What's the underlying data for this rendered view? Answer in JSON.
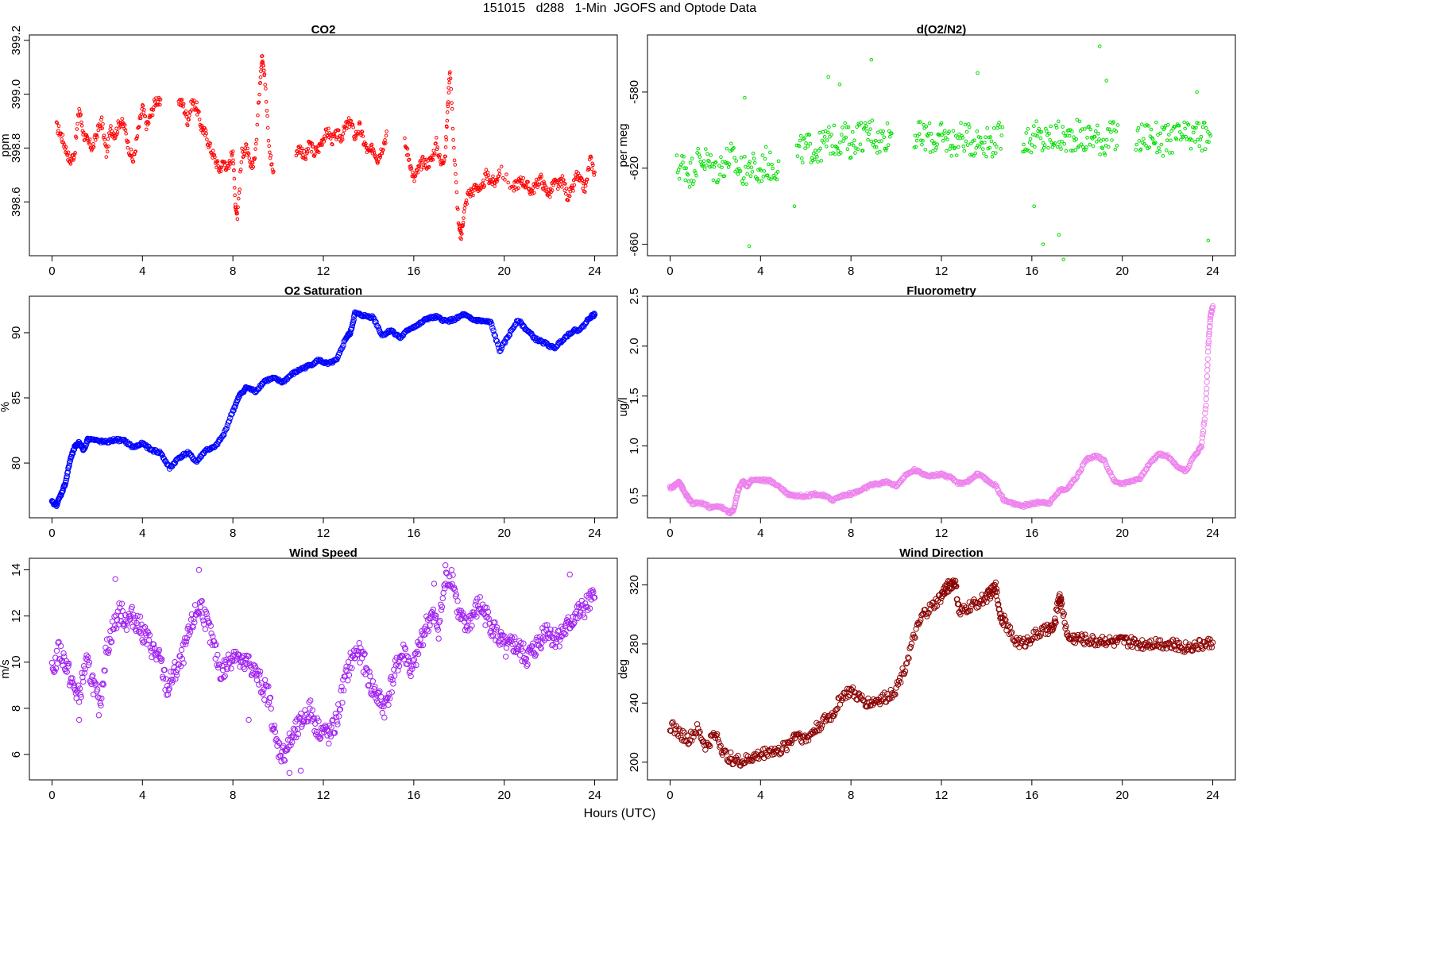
{
  "page_title": "151015   d288   1-Min  JGOFS and Optode Data",
  "x_axis_label": "Hours (UTC)",
  "colors": {
    "co2": "#ff0000",
    "o2n2": "#00dd00",
    "o2sat": "#0000ff",
    "fluor": "#ee82ee",
    "wind_speed": "#a020f0",
    "wind_dir": "#8b0000"
  },
  "chart_data": [
    {
      "id": "co2",
      "type": "scatter",
      "title": "CO2",
      "ylabel": "ppm",
      "xlim": [
        -1,
        25
      ],
      "ylim": [
        398.4,
        399.22
      ],
      "xticks": [
        0,
        4,
        8,
        12,
        16,
        20,
        24
      ],
      "xtick_labels": [
        "0",
        "4",
        "8",
        "12",
        "16",
        "20",
        "24"
      ],
      "yticks": [
        398.6,
        398.8,
        399.0,
        399.2
      ],
      "ytick_labels": [
        "398.6",
        "398.8",
        "399.0",
        "399.2"
      ],
      "grid": false,
      "marker_size": "small",
      "x": [
        0.2,
        0.4,
        0.6,
        0.8,
        1.0,
        1.2,
        1.4,
        1.6,
        1.8,
        2.0,
        2.2,
        2.4,
        2.6,
        2.8,
        3.0,
        3.2,
        3.4,
        3.6,
        3.8,
        4.0,
        4.2,
        4.4,
        4.6,
        4.8,
        5.6,
        5.8,
        6.0,
        6.2,
        6.4,
        6.6,
        6.8,
        7.0,
        7.2,
        7.4,
        7.6,
        7.8,
        8.0,
        8.1,
        8.2,
        8.4,
        8.6,
        8.8,
        9.0,
        9.2,
        9.3,
        9.4,
        9.6,
        9.8,
        10.8,
        11.0,
        11.2,
        11.4,
        11.6,
        11.8,
        12.0,
        12.2,
        12.4,
        12.6,
        12.8,
        13.0,
        13.2,
        13.4,
        13.6,
        13.8,
        14.0,
        14.2,
        14.4,
        14.6,
        14.8,
        15.6,
        15.8,
        16.0,
        16.2,
        16.4,
        16.6,
        16.8,
        17.0,
        17.2,
        17.4,
        17.5,
        17.6,
        17.8,
        18.0,
        18.1,
        18.2,
        18.4,
        18.6,
        18.8,
        19.0,
        19.2,
        19.4,
        19.6,
        19.8,
        20.4,
        20.6,
        20.8,
        21.0,
        21.2,
        21.4,
        21.6,
        21.8,
        22.0,
        22.2,
        22.4,
        22.6,
        22.8,
        23.0,
        23.2,
        23.4,
        23.6,
        23.8,
        24.0
      ],
      "y": [
        398.88,
        398.85,
        398.8,
        398.75,
        398.78,
        398.95,
        398.85,
        398.82,
        398.8,
        398.86,
        398.9,
        398.78,
        398.87,
        398.85,
        398.9,
        398.88,
        398.8,
        398.75,
        398.86,
        398.95,
        398.88,
        398.93,
        398.98,
        398.96,
        398.98,
        398.96,
        398.9,
        398.97,
        398.95,
        398.88,
        398.85,
        398.8,
        398.76,
        398.72,
        398.75,
        398.72,
        398.8,
        398.6,
        398.55,
        398.78,
        398.8,
        398.72,
        398.78,
        399.05,
        399.15,
        399.08,
        398.8,
        398.7,
        398.79,
        398.8,
        398.76,
        398.82,
        398.78,
        398.8,
        398.84,
        398.86,
        398.83,
        398.85,
        398.84,
        398.88,
        398.9,
        398.84,
        398.88,
        398.82,
        398.78,
        398.8,
        398.76,
        398.8,
        398.85,
        398.82,
        398.76,
        398.68,
        398.72,
        398.75,
        398.74,
        398.76,
        398.82,
        398.74,
        398.78,
        398.95,
        399.1,
        398.76,
        398.5,
        398.47,
        398.55,
        398.63,
        398.64,
        398.66,
        398.64,
        398.7,
        398.68,
        398.67,
        398.72,
        398.65,
        398.67,
        398.68,
        398.66,
        398.64,
        398.66,
        398.69,
        398.65,
        398.63,
        398.67,
        398.66,
        398.68,
        398.62,
        398.64,
        398.7,
        398.67,
        398.65,
        398.76,
        398.71
      ]
    },
    {
      "id": "o2n2",
      "type": "scatter",
      "title": "d(O2/N2)",
      "ylabel": "per meg",
      "xlim": [
        -1,
        25
      ],
      "ylim": [
        -666,
        -550
      ],
      "xticks": [
        0,
        4,
        8,
        12,
        16,
        20,
        24
      ],
      "xtick_labels": [
        "0",
        "4",
        "8",
        "12",
        "16",
        "20",
        "24"
      ],
      "yticks": [
        -580,
        -620,
        -660
      ],
      "ytick_labels": [
        "-580",
        "-620",
        "-660"
      ],
      "grid": false,
      "marker_size": "small",
      "x": [
        0.3,
        0.6,
        0.9,
        1.2,
        1.5,
        1.8,
        2.1,
        2.4,
        2.7,
        3.0,
        3.3,
        3.6,
        3.9,
        4.2,
        4.5,
        4.8,
        5.6,
        5.9,
        6.2,
        6.5,
        6.8,
        7.1,
        7.4,
        7.7,
        8.0,
        8.3,
        8.6,
        8.9,
        9.2,
        9.5,
        9.8,
        10.8,
        11.1,
        11.4,
        11.7,
        12.0,
        12.3,
        12.6,
        12.9,
        13.2,
        13.5,
        13.8,
        14.1,
        14.4,
        14.7,
        15.6,
        15.9,
        16.2,
        16.5,
        16.8,
        17.1,
        17.4,
        17.7,
        18.0,
        18.3,
        18.6,
        18.9,
        19.2,
        19.5,
        19.8,
        20.6,
        20.9,
        21.2,
        21.5,
        21.8,
        22.1,
        22.4,
        22.7,
        23.0,
        23.3,
        23.6,
        23.9
      ],
      "y": [
        -620,
        -618,
        -623,
        -616,
        -615,
        -619,
        -621,
        -617,
        -614,
        -620,
        -622,
        -618,
        -624,
        -616,
        -620,
        -618,
        -612,
        -610,
        -609,
        -611,
        -607,
        -605,
        -606,
        -603,
        -608,
        -602,
        -604,
        -600,
        -606,
        -603,
        -601,
        -602,
        -604,
        -603,
        -606,
        -604,
        -605,
        -607,
        -603,
        -605,
        -606,
        -604,
        -607,
        -605,
        -603,
        -604,
        -605,
        -603,
        -606,
        -604,
        -603,
        -605,
        -604,
        -602,
        -605,
        -603,
        -604,
        -606,
        -603,
        -604,
        -605,
        -604,
        -603,
        -604,
        -606,
        -605,
        -604,
        -603,
        -605,
        -602,
        -604,
        -603
      ],
      "scatter_x": [
        3.3,
        7.0,
        8.9,
        13.6,
        16.5,
        17.4,
        19.0,
        19.3,
        23.3,
        23.8,
        16.1,
        17.2,
        5.5,
        7.5,
        3.5
      ],
      "scatter_y": [
        -583,
        -572,
        -563,
        -570,
        -660,
        -668,
        -556,
        -574,
        -580,
        -658,
        -640,
        -655,
        -640,
        -576,
        -661
      ]
    },
    {
      "id": "o2sat",
      "type": "scatter",
      "title": "O2 Saturation",
      "ylabel": "%",
      "xlim": [
        -1,
        25
      ],
      "ylim": [
        75.8,
        92.8
      ],
      "xticks": [
        0,
        4,
        8,
        12,
        16,
        20,
        24
      ],
      "xtick_labels": [
        "0",
        "4",
        "8",
        "12",
        "16",
        "20",
        "24"
      ],
      "yticks": [
        80,
        85,
        90
      ],
      "ytick_labels": [
        "80",
        "85",
        "90"
      ],
      "grid": false,
      "marker_size": "large",
      "x": [
        0.0,
        0.2,
        0.4,
        0.6,
        0.8,
        1.0,
        1.2,
        1.4,
        1.6,
        2.0,
        2.4,
        2.8,
        3.2,
        3.6,
        4.0,
        4.4,
        4.8,
        5.2,
        5.6,
        6.0,
        6.4,
        6.8,
        7.2,
        7.6,
        8.0,
        8.3,
        8.6,
        9.0,
        9.4,
        9.8,
        10.2,
        10.6,
        11.0,
        11.4,
        11.8,
        12.2,
        12.6,
        13.0,
        13.2,
        13.4,
        13.8,
        14.2,
        14.6,
        15.0,
        15.4,
        15.8,
        16.2,
        16.6,
        17.0,
        17.4,
        17.8,
        18.2,
        18.6,
        19.0,
        19.4,
        19.8,
        20.2,
        20.6,
        21.0,
        21.4,
        21.8,
        22.2,
        22.6,
        23.0,
        23.4,
        23.8,
        24.0
      ],
      "y": [
        77.0,
        76.8,
        77.6,
        78.5,
        80.2,
        81.2,
        81.6,
        81.0,
        81.9,
        81.7,
        81.6,
        81.8,
        81.7,
        81.2,
        81.5,
        81.0,
        80.8,
        79.6,
        80.4,
        80.8,
        80.1,
        81.0,
        81.2,
        82.2,
        84.0,
        85.2,
        85.8,
        85.5,
        86.3,
        86.5,
        86.2,
        86.8,
        87.2,
        87.5,
        87.9,
        87.6,
        87.9,
        89.6,
        90.0,
        91.5,
        91.3,
        91.2,
        89.8,
        90.2,
        89.6,
        90.3,
        90.6,
        91.1,
        91.2,
        90.9,
        91.0,
        91.4,
        91.0,
        90.9,
        90.8,
        88.6,
        89.8,
        91.0,
        90.2,
        89.5,
        89.2,
        88.8,
        89.5,
        90.1,
        90.3,
        91.2,
        91.4
      ]
    },
    {
      "id": "fluor",
      "type": "scatter",
      "title": "Fluorometry",
      "ylabel": "ug/l",
      "xlim": [
        -1,
        25
      ],
      "ylim": [
        0.28,
        2.5
      ],
      "xticks": [
        0,
        4,
        8,
        12,
        16,
        20,
        24
      ],
      "xtick_labels": [
        "0",
        "4",
        "8",
        "12",
        "16",
        "20",
        "24"
      ],
      "yticks": [
        0.5,
        1.0,
        1.5,
        2.0,
        2.5
      ],
      "ytick_labels": [
        "0.5",
        "1.0",
        "1.5",
        "2.0",
        "2.5"
      ],
      "grid": false,
      "marker_size": "large",
      "x": [
        0.0,
        0.2,
        0.4,
        0.6,
        0.8,
        1.0,
        1.4,
        1.8,
        2.2,
        2.6,
        2.8,
        3.0,
        3.2,
        3.4,
        3.6,
        4.0,
        4.4,
        4.8,
        5.2,
        5.6,
        6.0,
        6.4,
        6.8,
        7.2,
        7.6,
        8.0,
        8.4,
        8.8,
        9.2,
        9.6,
        10.0,
        10.4,
        10.8,
        11.2,
        11.6,
        12.0,
        12.4,
        12.8,
        13.2,
        13.6,
        14.0,
        14.4,
        14.8,
        15.2,
        15.6,
        16.0,
        16.4,
        16.8,
        17.2,
        17.6,
        18.0,
        18.4,
        18.8,
        19.2,
        19.6,
        20.0,
        20.4,
        20.8,
        21.2,
        21.6,
        22.0,
        22.4,
        22.8,
        23.2,
        23.5,
        23.7,
        23.8,
        23.9,
        24.0
      ],
      "y": [
        0.58,
        0.6,
        0.65,
        0.55,
        0.48,
        0.42,
        0.43,
        0.38,
        0.4,
        0.33,
        0.35,
        0.55,
        0.65,
        0.6,
        0.66,
        0.66,
        0.65,
        0.6,
        0.52,
        0.5,
        0.5,
        0.52,
        0.5,
        0.46,
        0.5,
        0.52,
        0.55,
        0.6,
        0.62,
        0.64,
        0.6,
        0.7,
        0.76,
        0.72,
        0.7,
        0.72,
        0.68,
        0.62,
        0.65,
        0.72,
        0.66,
        0.6,
        0.45,
        0.42,
        0.4,
        0.42,
        0.44,
        0.43,
        0.55,
        0.58,
        0.7,
        0.86,
        0.9,
        0.86,
        0.66,
        0.62,
        0.65,
        0.68,
        0.82,
        0.92,
        0.9,
        0.8,
        0.75,
        0.9,
        1.0,
        1.4,
        2.0,
        2.3,
        2.4
      ]
    },
    {
      "id": "wind_speed",
      "type": "scatter",
      "title": "Wind Speed",
      "ylabel": "m/s",
      "xlim": [
        -1,
        25
      ],
      "ylim": [
        4.9,
        14.5
      ],
      "xticks": [
        0,
        4,
        8,
        12,
        16,
        20,
        24
      ],
      "xtick_labels": [
        "0",
        "4",
        "8",
        "12",
        "16",
        "20",
        "24"
      ],
      "yticks": [
        6,
        8,
        10,
        12,
        14
      ],
      "ytick_labels": [
        "6",
        "8",
        "10",
        "12",
        "14"
      ],
      "grid": false,
      "marker_size": "large",
      "x": [
        0.0,
        0.3,
        0.6,
        0.9,
        1.2,
        1.5,
        1.8,
        2.1,
        2.4,
        2.7,
        3.0,
        3.3,
        3.6,
        3.9,
        4.2,
        4.5,
        4.8,
        5.1,
        5.4,
        5.7,
        6.0,
        6.3,
        6.6,
        6.9,
        7.2,
        7.5,
        7.8,
        8.1,
        8.4,
        8.7,
        9.0,
        9.3,
        9.6,
        9.9,
        10.2,
        10.5,
        10.8,
        11.1,
        11.4,
        11.7,
        12.0,
        12.3,
        12.6,
        12.9,
        13.2,
        13.5,
        13.8,
        14.1,
        14.4,
        14.7,
        15.0,
        15.3,
        15.6,
        15.9,
        16.2,
        16.5,
        16.8,
        17.1,
        17.4,
        17.7,
        18.0,
        18.3,
        18.6,
        18.9,
        19.2,
        19.5,
        19.8,
        20.1,
        20.4,
        20.7,
        21.0,
        21.3,
        21.6,
        21.9,
        22.2,
        22.5,
        22.8,
        23.1,
        23.4,
        23.7,
        24.0
      ],
      "y": [
        9.5,
        10.5,
        10.0,
        9.0,
        8.5,
        10.0,
        9.2,
        8.0,
        10.5,
        11.5,
        12.2,
        11.8,
        12.0,
        11.5,
        11.0,
        10.5,
        10.0,
        8.8,
        9.5,
        10.0,
        11.0,
        12.0,
        12.5,
        11.5,
        10.5,
        9.5,
        10.0,
        10.5,
        9.8,
        10.0,
        9.5,
        9.0,
        8.5,
        6.5,
        6.0,
        6.5,
        7.0,
        7.5,
        8.0,
        7.2,
        7.0,
        6.8,
        7.5,
        9.0,
        10.0,
        10.5,
        10.0,
        9.0,
        8.5,
        8.0,
        9.0,
        10.0,
        10.5,
        9.5,
        10.5,
        11.5,
        12.0,
        11.5,
        13.5,
        13.8,
        12.0,
        11.5,
        12.0,
        12.5,
        12.0,
        11.5,
        11.0,
        10.5,
        10.8,
        10.5,
        10.2,
        10.5,
        11.0,
        11.5,
        11.0,
        11.2,
        11.5,
        12.0,
        12.2,
        12.5,
        12.8
      ],
      "scatter_x": [
        6.5,
        17.4,
        2.8,
        22.9,
        1.2,
        8.7,
        10.5,
        11.0,
        16.9
      ],
      "scatter_y": [
        14.0,
        14.2,
        13.6,
        13.8,
        7.5,
        7.5,
        5.2,
        5.3,
        13.4
      ]
    },
    {
      "id": "wind_dir",
      "type": "scatter",
      "title": "Wind Direction",
      "ylabel": "deg",
      "xlim": [
        -1,
        25
      ],
      "ylim": [
        188,
        338
      ],
      "xticks": [
        0,
        4,
        8,
        12,
        16,
        20,
        24
      ],
      "xtick_labels": [
        "0",
        "4",
        "8",
        "12",
        "16",
        "20",
        "24"
      ],
      "yticks": [
        200,
        240,
        280,
        320
      ],
      "ytick_labels": [
        "200",
        "240",
        "280",
        "320"
      ],
      "grid": false,
      "marker_size": "large",
      "x": [
        0.0,
        0.4,
        0.8,
        1.2,
        1.6,
        2.0,
        2.4,
        2.8,
        3.2,
        3.6,
        4.0,
        4.4,
        4.8,
        5.2,
        5.6,
        6.0,
        6.4,
        6.8,
        7.2,
        7.6,
        8.0,
        8.4,
        8.8,
        9.2,
        9.6,
        10.0,
        10.4,
        10.8,
        11.2,
        11.6,
        12.0,
        12.2,
        12.4,
        12.6,
        12.8,
        13.2,
        13.6,
        14.0,
        14.2,
        14.4,
        14.6,
        14.8,
        15.2,
        15.6,
        16.0,
        16.4,
        16.8,
        17.0,
        17.2,
        17.3,
        17.6,
        18.0,
        18.4,
        18.8,
        19.2,
        19.6,
        20.0,
        20.4,
        20.8,
        21.2,
        21.6,
        22.0,
        22.4,
        22.8,
        23.2,
        23.6,
        24.0
      ],
      "y": [
        225,
        220,
        215,
        222,
        210,
        220,
        205,
        202,
        200,
        203,
        205,
        208,
        207,
        212,
        220,
        215,
        222,
        228,
        232,
        245,
        248,
        243,
        240,
        242,
        244,
        250,
        265,
        285,
        300,
        305,
        312,
        318,
        320,
        322,
        300,
        305,
        308,
        312,
        315,
        318,
        300,
        295,
        283,
        280,
        285,
        288,
        290,
        292,
        312,
        308,
        284,
        284,
        283,
        282,
        283,
        281,
        282,
        281,
        280,
        281,
        281,
        280,
        279,
        278,
        279,
        280,
        281
      ]
    }
  ]
}
